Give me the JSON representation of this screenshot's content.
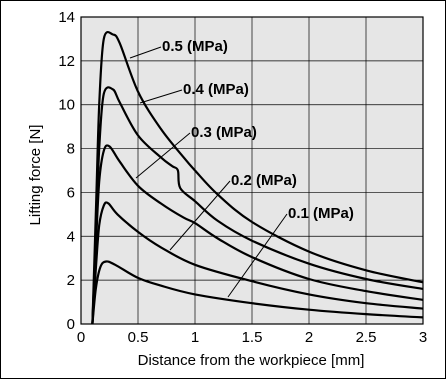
{
  "chart_data": {
    "type": "line",
    "title": "",
    "xlabel": "Distance from the workpiece [mm]",
    "ylabel": "Lifting force [N]",
    "xlim": [
      0,
      3
    ],
    "ylim": [
      0,
      14
    ],
    "x_ticks": [
      "0",
      "0.5",
      "1",
      "1.5",
      "2",
      "2.5",
      "3"
    ],
    "y_ticks": [
      "0",
      "2",
      "4",
      "6",
      "8",
      "10",
      "12",
      "14"
    ],
    "grid": true,
    "legend": "none",
    "plot_background": "#e6e6e6",
    "line_color": "#000000",
    "series": [
      {
        "name": "0.5 (MPa)",
        "points": [
          [
            0.1,
            0
          ],
          [
            0.13,
            5.0
          ],
          [
            0.16,
            10.0
          ],
          [
            0.2,
            13.0
          ],
          [
            0.28,
            13.2
          ],
          [
            0.34,
            12.8
          ],
          [
            0.5,
            10.6
          ],
          [
            0.7,
            8.9
          ],
          [
            0.9,
            7.6
          ],
          [
            1.0,
            7.0
          ],
          [
            1.2,
            5.9
          ],
          [
            1.5,
            4.65
          ],
          [
            2.0,
            3.3
          ],
          [
            2.5,
            2.45
          ],
          [
            3.0,
            1.9
          ]
        ]
      },
      {
        "name": "0.4 (MPa)",
        "points": [
          [
            0.1,
            0
          ],
          [
            0.13,
            4.0
          ],
          [
            0.16,
            8.0
          ],
          [
            0.2,
            10.5
          ],
          [
            0.28,
            10.7
          ],
          [
            0.34,
            10.1
          ],
          [
            0.5,
            8.6
          ],
          [
            0.7,
            7.6
          ],
          [
            0.8,
            7.2
          ],
          [
            0.85,
            7.0
          ],
          [
            0.87,
            6.2
          ],
          [
            1.0,
            5.6
          ],
          [
            1.2,
            4.7
          ],
          [
            1.5,
            3.8
          ],
          [
            2.0,
            2.75
          ],
          [
            2.5,
            2.05
          ],
          [
            3.0,
            1.6
          ]
        ]
      },
      {
        "name": "0.3 (MPa)",
        "points": [
          [
            0.1,
            0
          ],
          [
            0.13,
            3.5
          ],
          [
            0.16,
            6.5
          ],
          [
            0.2,
            7.9
          ],
          [
            0.25,
            8.1
          ],
          [
            0.34,
            7.4
          ],
          [
            0.5,
            6.3
          ],
          [
            0.7,
            5.5
          ],
          [
            0.9,
            4.85
          ],
          [
            1.0,
            4.6
          ],
          [
            1.2,
            3.9
          ],
          [
            1.5,
            3.05
          ],
          [
            2.0,
            2.05
          ],
          [
            2.5,
            1.5
          ],
          [
            3.0,
            1.1
          ]
        ]
      },
      {
        "name": "0.2 (MPa)",
        "points": [
          [
            0.1,
            0
          ],
          [
            0.13,
            2.5
          ],
          [
            0.16,
            4.5
          ],
          [
            0.2,
            5.4
          ],
          [
            0.24,
            5.5
          ],
          [
            0.32,
            5.0
          ],
          [
            0.5,
            4.2
          ],
          [
            0.7,
            3.5
          ],
          [
            1.0,
            2.7
          ],
          [
            1.5,
            1.95
          ],
          [
            2.0,
            1.35
          ],
          [
            2.5,
            0.95
          ],
          [
            3.0,
            0.7
          ]
        ]
      },
      {
        "name": "0.1 (MPa)",
        "points": [
          [
            0.1,
            0
          ],
          [
            0.13,
            1.6
          ],
          [
            0.17,
            2.6
          ],
          [
            0.22,
            2.85
          ],
          [
            0.3,
            2.7
          ],
          [
            0.5,
            2.1
          ],
          [
            0.7,
            1.75
          ],
          [
            1.0,
            1.35
          ],
          [
            1.5,
            0.95
          ],
          [
            2.0,
            0.65
          ],
          [
            2.5,
            0.45
          ],
          [
            3.0,
            0.3
          ]
        ]
      }
    ]
  }
}
